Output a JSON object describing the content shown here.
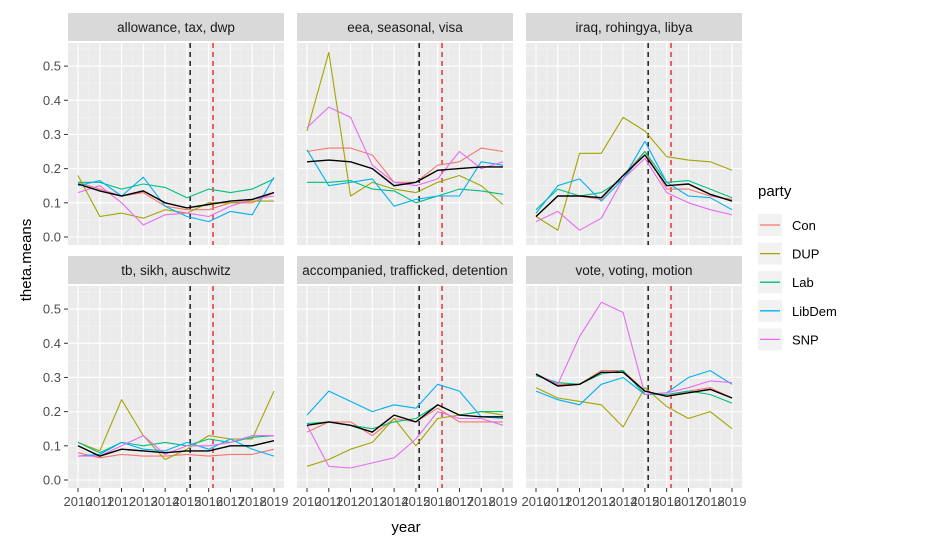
{
  "chart_data": {
    "type": "line",
    "xlabel": "year",
    "ylabel": "theta.means",
    "xlim": [
      2010,
      2019
    ],
    "ylim": [
      0,
      0.55
    ],
    "x_ticks": [
      "2010",
      "2011",
      "2012",
      "2013",
      "2014",
      "2015",
      "2016",
      "2017",
      "2018",
      "2019"
    ],
    "y_ticks": [
      "0.0",
      "0.1",
      "0.2",
      "0.3",
      "0.4",
      "0.5"
    ],
    "x": [
      2010,
      2011,
      2012,
      2013,
      2014,
      2015,
      2016,
      2017,
      2018,
      2019
    ],
    "vlines": [
      {
        "x": 2015.15,
        "color": "#000000"
      },
      {
        "x": 2016.2,
        "color": "#e41a1c"
      }
    ],
    "legend": {
      "title": "party",
      "position": "right",
      "items": [
        {
          "label": "Con",
          "color": "#F8766D"
        },
        {
          "label": "DUP",
          "color": "#A3A500"
        },
        {
          "label": "Lab",
          "color": "#00BF7D"
        },
        {
          "label": "LibDem",
          "color": "#00B0F6"
        },
        {
          "label": "SNP",
          "color": "#E76BF3"
        }
      ]
    },
    "mean_color": "#000000",
    "panels": [
      {
        "title": "allowance, tax, dwp",
        "series": [
          {
            "name": "Con",
            "values": [
              0.16,
              0.14,
              0.12,
              0.13,
              0.09,
              0.08,
              0.08,
              0.1,
              0.1,
              0.13
            ]
          },
          {
            "name": "DUP",
            "values": [
              0.18,
              0.06,
              0.07,
              0.055,
              0.08,
              0.07,
              0.1,
              0.1,
              0.105,
              0.105
            ]
          },
          {
            "name": "Lab",
            "values": [
              0.16,
              0.16,
              0.14,
              0.155,
              0.145,
              0.115,
              0.14,
              0.13,
              0.14,
              0.17
            ]
          },
          {
            "name": "LibDem",
            "values": [
              0.15,
              0.165,
              0.12,
              0.175,
              0.09,
              0.06,
              0.045,
              0.075,
              0.065,
              0.175
            ]
          },
          {
            "name": "SNP",
            "values": [
              0.13,
              0.15,
              0.1,
              0.035,
              0.065,
              0.07,
              0.06,
              0.09,
              0.11,
              0.12
            ]
          }
        ],
        "mean": [
          0.155,
          0.135,
          0.12,
          0.135,
          0.1,
          0.085,
          0.095,
          0.105,
          0.11,
          0.13
        ]
      },
      {
        "title": "eea, seasonal, visa",
        "series": [
          {
            "name": "Con",
            "values": [
              0.25,
              0.26,
              0.26,
              0.24,
              0.16,
              0.16,
              0.21,
              0.22,
              0.26,
              0.25
            ]
          },
          {
            "name": "DUP",
            "values": [
              0.31,
              0.54,
              0.12,
              0.16,
              0.14,
              0.13,
              0.16,
              0.18,
              0.15,
              0.095
            ]
          },
          {
            "name": "Lab",
            "values": [
              0.16,
              0.16,
              0.165,
              0.14,
              0.135,
              0.1,
              0.12,
              0.14,
              0.135,
              0.125
            ]
          },
          {
            "name": "LibDem",
            "values": [
              0.255,
              0.15,
              0.16,
              0.17,
              0.09,
              0.11,
              0.12,
              0.12,
              0.22,
              0.21
            ]
          },
          {
            "name": "SNP",
            "values": [
              0.32,
              0.38,
              0.35,
              0.21,
              0.16,
              0.15,
              0.17,
              0.25,
              0.2,
              0.22
            ]
          }
        ],
        "mean": [
          0.22,
          0.225,
          0.22,
          0.2,
          0.15,
          0.16,
          0.195,
          0.2,
          0.205,
          0.205
        ]
      },
      {
        "title": "iraq, rohingya, libya",
        "series": [
          {
            "name": "Con",
            "values": [
              0.06,
              0.12,
              0.12,
              0.11,
              0.18,
              0.25,
              0.14,
              0.14,
              0.12,
              0.11
            ]
          },
          {
            "name": "DUP",
            "values": [
              0.06,
              0.02,
              0.245,
              0.245,
              0.35,
              0.31,
              0.235,
              0.225,
              0.22,
              0.195
            ]
          },
          {
            "name": "Lab",
            "values": [
              0.08,
              0.14,
              0.12,
              0.13,
              0.17,
              0.25,
              0.16,
              0.165,
              0.14,
              0.115
            ]
          },
          {
            "name": "LibDem",
            "values": [
              0.07,
              0.15,
              0.17,
              0.105,
              0.17,
              0.28,
              0.16,
              0.12,
              0.115,
              0.08
            ]
          },
          {
            "name": "SNP",
            "values": [
              0.045,
              0.075,
              0.02,
              0.055,
              0.17,
              0.23,
              0.13,
              0.1,
              0.08,
              0.065
            ]
          }
        ],
        "mean": [
          0.06,
          0.12,
          0.12,
          0.115,
          0.18,
          0.24,
          0.15,
          0.155,
          0.125,
          0.105
        ]
      },
      {
        "title": "tb, sikh, auschwitz",
        "series": [
          {
            "name": "Con",
            "values": [
              0.08,
              0.065,
              0.075,
              0.07,
              0.07,
              0.075,
              0.07,
              0.075,
              0.075,
              0.09
            ]
          },
          {
            "name": "DUP",
            "values": [
              0.11,
              0.085,
              0.235,
              0.13,
              0.06,
              0.09,
              0.13,
              0.12,
              0.12,
              0.26
            ]
          },
          {
            "name": "Lab",
            "values": [
              0.11,
              0.08,
              0.11,
              0.1,
              0.11,
              0.1,
              0.12,
              0.11,
              0.125,
              0.13
            ]
          },
          {
            "name": "LibDem",
            "values": [
              0.07,
              0.075,
              0.11,
              0.09,
              0.085,
              0.11,
              0.09,
              0.12,
              0.09,
              0.07
            ]
          },
          {
            "name": "SNP",
            "values": [
              0.07,
              0.07,
              0.1,
              0.13,
              0.075,
              0.1,
              0.1,
              0.11,
              0.13,
              0.13
            ]
          }
        ],
        "mean": [
          0.1,
          0.07,
          0.09,
          0.085,
          0.08,
          0.085,
          0.085,
          0.1,
          0.1,
          0.115
        ]
      },
      {
        "title": "accompanied, trafficked, detention",
        "series": [
          {
            "name": "Con",
            "values": [
              0.14,
              0.17,
              0.17,
              0.13,
              0.18,
              0.17,
              0.21,
              0.17,
              0.17,
              0.17
            ]
          },
          {
            "name": "DUP",
            "values": [
              0.04,
              0.06,
              0.09,
              0.11,
              0.18,
              0.1,
              0.18,
              0.19,
              0.2,
              0.19
            ]
          },
          {
            "name": "Lab",
            "values": [
              0.165,
              0.17,
              0.16,
              0.15,
              0.17,
              0.18,
              0.22,
              0.19,
              0.2,
              0.2
            ]
          },
          {
            "name": "LibDem",
            "values": [
              0.19,
              0.26,
              0.23,
              0.2,
              0.22,
              0.21,
              0.28,
              0.26,
              0.185,
              0.18
            ]
          },
          {
            "name": "SNP",
            "values": [
              0.16,
              0.04,
              0.035,
              0.05,
              0.065,
              0.12,
              0.2,
              0.18,
              0.18,
              0.16
            ]
          }
        ],
        "mean": [
          0.16,
          0.17,
          0.16,
          0.14,
          0.19,
          0.17,
          0.22,
          0.19,
          0.185,
          0.185
        ]
      },
      {
        "title": "vote, voting, motion",
        "series": [
          {
            "name": "Con",
            "values": [
              0.31,
              0.28,
              0.28,
              0.32,
              0.32,
              0.26,
              0.245,
              0.26,
              0.27,
              0.24
            ]
          },
          {
            "name": "DUP",
            "values": [
              0.27,
              0.24,
              0.23,
              0.22,
              0.155,
              0.27,
              0.215,
              0.18,
              0.2,
              0.15
            ]
          },
          {
            "name": "Lab",
            "values": [
              0.305,
              0.285,
              0.28,
              0.31,
              0.32,
              0.25,
              0.25,
              0.26,
              0.25,
              0.225
            ]
          },
          {
            "name": "LibDem",
            "values": [
              0.26,
              0.235,
              0.22,
              0.28,
              0.3,
              0.25,
              0.255,
              0.3,
              0.32,
              0.28
            ]
          },
          {
            "name": "SNP",
            "values": [
              0.31,
              0.28,
              0.42,
              0.52,
              0.49,
              0.25,
              0.255,
              0.27,
              0.29,
              0.285
            ]
          }
        ],
        "mean": [
          0.31,
          0.275,
          0.28,
          0.315,
          0.315,
          0.26,
          0.245,
          0.255,
          0.265,
          0.24
        ]
      }
    ]
  }
}
